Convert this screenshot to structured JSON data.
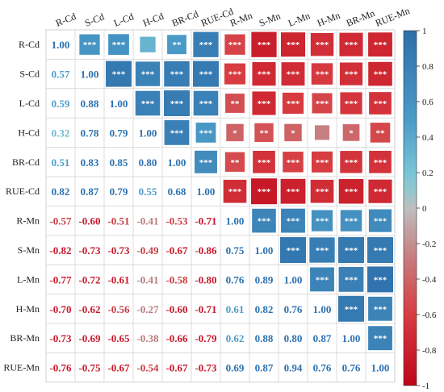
{
  "chart_data": {
    "type": "heatmap",
    "variables": [
      "R-Cd",
      "S-Cd",
      "L-Cd",
      "H-Cd",
      "BR-Cd",
      "RUE-Cd",
      "R-Mn",
      "S-Mn",
      "L-Mn",
      "H-Mn",
      "BR-Mn",
      "RUE-Mn"
    ],
    "lower_triangle": "correlation coefficient",
    "upper_triangle": "significance stars",
    "matrix": [
      [
        1.0,
        0.57,
        0.59,
        0.32,
        0.51,
        0.82,
        -0.57,
        -0.82,
        -0.77,
        -0.7,
        -0.73,
        -0.76
      ],
      [
        0.57,
        1.0,
        0.88,
        0.78,
        0.83,
        0.87,
        -0.6,
        -0.73,
        -0.72,
        -0.62,
        -0.69,
        -0.75
      ],
      [
        0.59,
        0.88,
        1.0,
        0.79,
        0.85,
        0.79,
        -0.51,
        -0.73,
        -0.61,
        -0.56,
        -0.65,
        -0.67
      ],
      [
        0.32,
        0.78,
        0.79,
        1.0,
        0.8,
        0.55,
        -0.41,
        -0.49,
        -0.41,
        -0.27,
        -0.38,
        -0.54
      ],
      [
        0.51,
        0.83,
        0.85,
        0.8,
        1.0,
        0.68,
        -0.53,
        -0.67,
        -0.58,
        -0.6,
        -0.66,
        -0.67
      ],
      [
        0.82,
        0.87,
        0.79,
        0.55,
        0.68,
        1.0,
        -0.71,
        -0.86,
        -0.8,
        -0.71,
        -0.79,
        -0.73
      ],
      [
        -0.57,
        -0.6,
        -0.51,
        -0.41,
        -0.53,
        -0.71,
        1.0,
        0.75,
        0.76,
        0.61,
        0.62,
        0.69
      ],
      [
        -0.82,
        -0.73,
        -0.73,
        -0.49,
        -0.67,
        -0.86,
        0.75,
        1.0,
        0.89,
        0.82,
        0.88,
        0.87
      ],
      [
        -0.77,
        -0.72,
        -0.61,
        -0.41,
        -0.58,
        -0.8,
        0.76,
        0.89,
        1.0,
        0.76,
        0.8,
        0.94
      ],
      [
        -0.7,
        -0.62,
        -0.56,
        -0.27,
        -0.6,
        -0.71,
        0.61,
        0.82,
        0.76,
        1.0,
        0.87,
        0.76
      ],
      [
        -0.73,
        -0.69,
        -0.65,
        -0.38,
        -0.66,
        -0.79,
        0.62,
        0.88,
        0.8,
        0.87,
        1.0,
        0.76
      ],
      [
        -0.76,
        -0.75,
        -0.67,
        -0.54,
        -0.67,
        -0.73,
        0.69,
        0.87,
        0.94,
        0.76,
        0.76,
        1.0
      ]
    ],
    "significance": [
      [
        "",
        "***",
        "***",
        "",
        "**",
        "***",
        "***",
        "***",
        "***",
        "***",
        "***",
        "***"
      ],
      [
        "***",
        "",
        "***",
        "***",
        "***",
        "***",
        "***",
        "***",
        "***",
        "***",
        "***",
        "***"
      ],
      [
        "***",
        "***",
        "",
        "***",
        "***",
        "***",
        "**",
        "***",
        "***",
        "***",
        "***",
        "***"
      ],
      [
        "",
        "***",
        "***",
        "",
        "***",
        "***",
        "*",
        "**",
        "*",
        "",
        "*",
        "**"
      ],
      [
        "**",
        "***",
        "***",
        "***",
        "",
        "***",
        "**",
        "***",
        "***",
        "***",
        "***",
        "***"
      ],
      [
        "***",
        "***",
        "***",
        "***",
        "***",
        "",
        "***",
        "***",
        "***",
        "***",
        "***",
        "***"
      ],
      [
        "***",
        "***",
        "**",
        "*",
        "**",
        "***",
        "",
        "***",
        "***",
        "***",
        "***",
        "***"
      ],
      [
        "***",
        "***",
        "***",
        "**",
        "***",
        "***",
        "***",
        "",
        "***",
        "***",
        "***",
        "***"
      ],
      [
        "***",
        "***",
        "***",
        "*",
        "***",
        "***",
        "***",
        "***",
        "",
        "***",
        "***",
        "***"
      ],
      [
        "***",
        "***",
        "***",
        "",
        "***",
        "***",
        "***",
        "***",
        "***",
        "",
        "***",
        "***"
      ],
      [
        "***",
        "***",
        "***",
        "*",
        "***",
        "***",
        "***",
        "***",
        "***",
        "***",
        "",
        "***"
      ],
      [
        "***",
        "***",
        "***",
        "**",
        "***",
        "***",
        "***",
        "***",
        "***",
        "***",
        "***",
        ""
      ]
    ],
    "colorbar": {
      "range": [
        -1,
        1
      ],
      "ticks": [
        1,
        0.8,
        0.6,
        0.4,
        0.2,
        0,
        -0.2,
        -0.4,
        -0.6,
        -0.8,
        -1
      ],
      "tick_labels": [
        "1",
        "0.8",
        "0.6",
        "0.4",
        "0.2",
        "0",
        "-0.2",
        "-0.4",
        "-0.6",
        "-0.8",
        "-1"
      ],
      "placement": "right",
      "colors": {
        "negative": "#c8081b",
        "neutral": "#bfbfbf",
        "low_positive": "#7fcbd8",
        "positive": "#2e6eaa"
      }
    },
    "grid": true
  }
}
